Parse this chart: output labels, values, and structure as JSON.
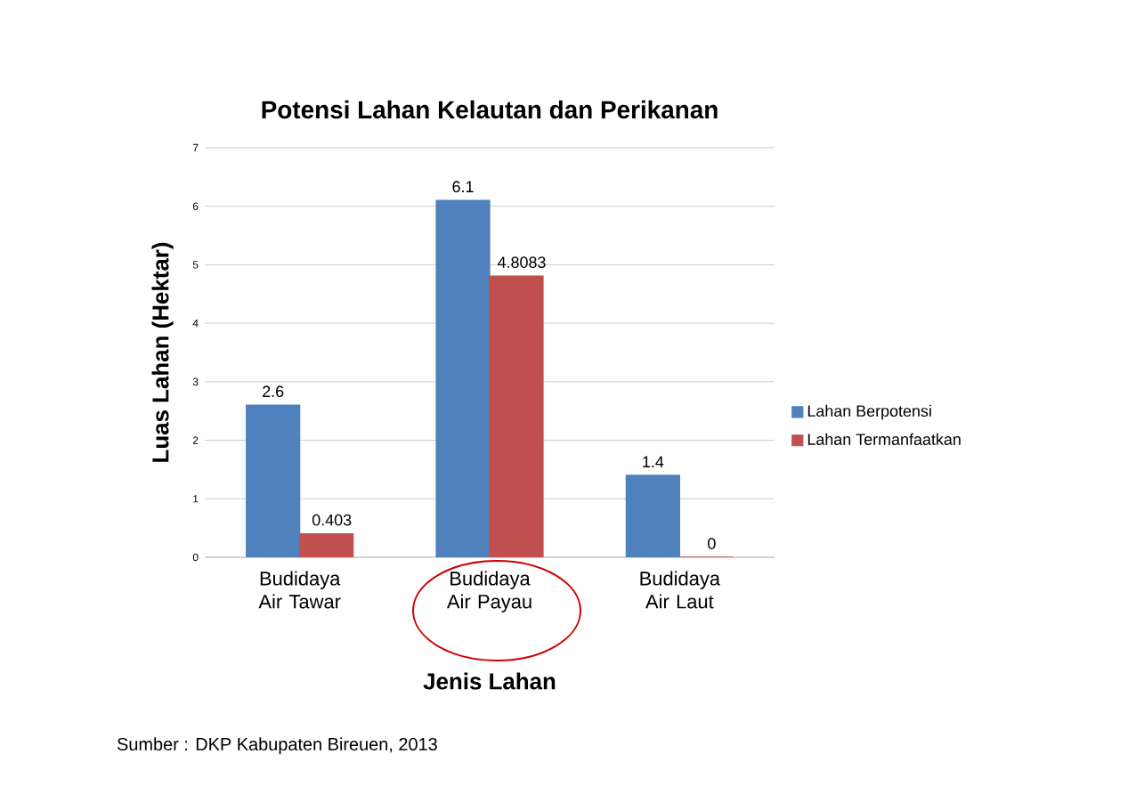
{
  "chart_data": {
    "type": "bar",
    "title": "Potensi Lahan Kelautan dan Perikanan",
    "xlabel": "Jenis Lahan",
    "ylabel": "Luas Lahan (Hektar)",
    "categories": [
      "Budidaya Air Tawar",
      "Budidaya Air Payau",
      "Budidaya Air Laut"
    ],
    "series": [
      {
        "name": "Lahan Berpotensi",
        "color": "#4f81bd",
        "values": [
          2.6,
          6.1,
          1.4
        ]
      },
      {
        "name": "Lahan Termanfaatkan",
        "color": "#c0504d",
        "values": [
          0.403,
          4.8083,
          0
        ]
      }
    ],
    "ylim": [
      0,
      7
    ],
    "yticks": [
      0,
      1,
      2,
      3,
      4,
      5,
      6,
      7
    ],
    "grid": "y",
    "legend": "right",
    "data_labels": true,
    "annotations": [
      "Sumber : DKP Kabupaten Bireuen, 2013"
    ]
  }
}
